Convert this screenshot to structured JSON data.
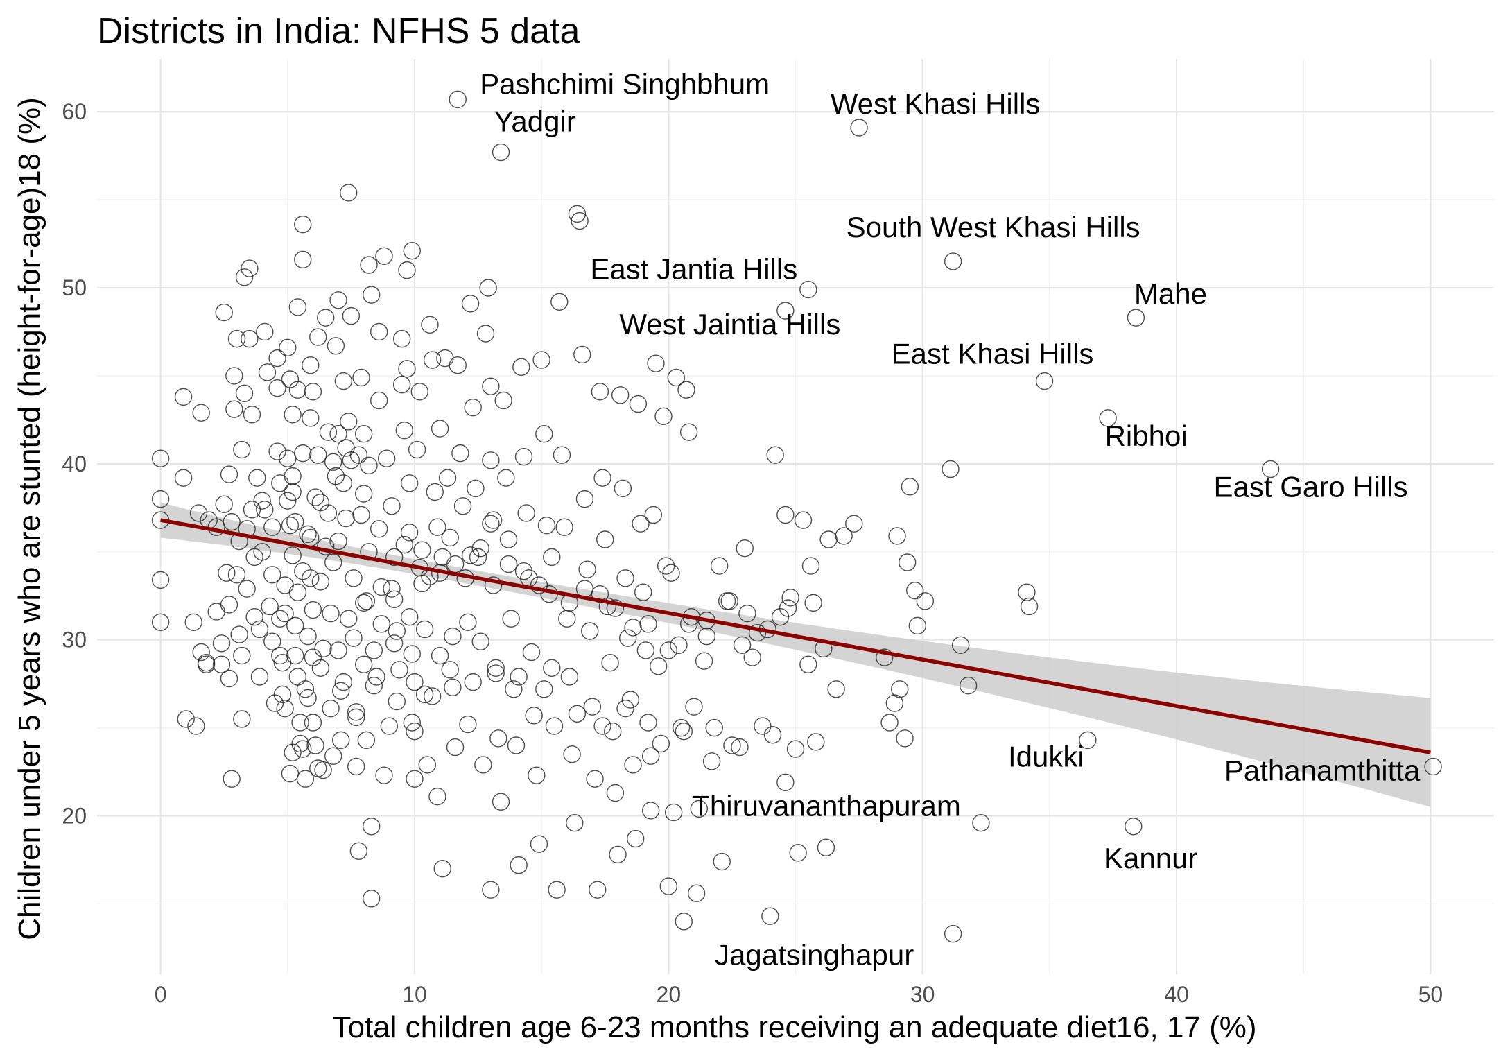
{
  "chart_data": {
    "type": "scatter",
    "title": "Districts in India: NFHS 5 data",
    "xlabel": "Total children age 6-23 months receiving an adequate diet16, 17  (%)",
    "ylabel": "Children under 5 years who are stunted (height-for-age)18 (%)",
    "xlim": [
      -2.5,
      52.5
    ],
    "ylim": [
      11,
      63
    ],
    "x_ticks": [
      0,
      10,
      20,
      30,
      40,
      50
    ],
    "y_ticks": [
      20,
      30,
      40,
      50,
      60
    ],
    "grid": true,
    "legend": "none",
    "colors": {
      "points": "#222222",
      "fit_line": "#8b0000",
      "ci_band": "#cccccc",
      "grid": "#ebebeb"
    },
    "fit": {
      "type": "linear",
      "x": [
        0,
        50
      ],
      "y": [
        36.8,
        23.6
      ],
      "ci_lower": [
        35.8,
        20.5
      ],
      "ci_upper": [
        37.8,
        26.7
      ]
    },
    "labeled_points": [
      {
        "name": "Pashchimi Singhbhum",
        "x": 11.7,
        "y": 60.7
      },
      {
        "name": "Yadgir",
        "x": 13.4,
        "y": 57.7
      },
      {
        "name": "West Khasi Hills",
        "x": 27.5,
        "y": 59.1
      },
      {
        "name": "South West Khasi Hills",
        "x": 31.2,
        "y": 51.5
      },
      {
        "name": "East Jantia Hills",
        "x": 25.5,
        "y": 49.9
      },
      {
        "name": "Mahe",
        "x": 38.4,
        "y": 48.3
      },
      {
        "name": "West Jaintia Hills",
        "x": 24.6,
        "y": 48.7
      },
      {
        "name": "East Khasi Hills",
        "x": 34.8,
        "y": 44.7
      },
      {
        "name": "Ribhoi",
        "x": 37.3,
        "y": 42.6
      },
      {
        "name": "East Garo Hills",
        "x": 43.7,
        "y": 39.7
      },
      {
        "name": "Idukki",
        "x": 36.5,
        "y": 24.3
      },
      {
        "name": "Pathanamthitta",
        "x": 50.1,
        "y": 22.8
      },
      {
        "name": "Thiruvananthapuram",
        "x": 21.2,
        "y": 20.4
      },
      {
        "name": "Kannur",
        "x": 38.3,
        "y": 19.4
      },
      {
        "name": "Jagatsinghapur",
        "x": 31.2,
        "y": 13.3
      }
    ],
    "points": [
      [
        0,
        40.3
      ],
      [
        0,
        38
      ],
      [
        0,
        36.8
      ],
      [
        0,
        33.4
      ],
      [
        0,
        31
      ],
      [
        0.9,
        43.8
      ],
      [
        0.9,
        39.2
      ],
      [
        1,
        25.5
      ],
      [
        1.3,
        31
      ],
      [
        1.4,
        25.1
      ],
      [
        1.5,
        37.2
      ],
      [
        1.6,
        29.3
      ],
      [
        1.6,
        42.9
      ],
      [
        1.8,
        28.7
      ],
      [
        1.9,
        36.8
      ],
      [
        2.2,
        36.4
      ],
      [
        2.4,
        29.8
      ],
      [
        2.4,
        28.6
      ],
      [
        2.5,
        48.6
      ],
      [
        2.5,
        37.7
      ],
      [
        2.6,
        33.8
      ],
      [
        2.7,
        32
      ],
      [
        2.7,
        27.8
      ],
      [
        2.7,
        39.4
      ],
      [
        2.8,
        22.1
      ],
      [
        2.8,
        36.7
      ],
      [
        2.9,
        45
      ],
      [
        2.9,
        43.1
      ],
      [
        3,
        47.1
      ],
      [
        3,
        33.7
      ],
      [
        3.1,
        30.3
      ],
      [
        3.1,
        35.6
      ],
      [
        3.2,
        25.5
      ],
      [
        3.2,
        29.1
      ],
      [
        3.2,
        40.8
      ],
      [
        3.3,
        44
      ],
      [
        3.3,
        50.6
      ],
      [
        3.4,
        32.9
      ],
      [
        3.4,
        36.3
      ],
      [
        3.5,
        51.1
      ],
      [
        3.5,
        47.1
      ],
      [
        3.6,
        42.8
      ],
      [
        3.7,
        31.3
      ],
      [
        3.7,
        34.7
      ],
      [
        3.8,
        39.2
      ],
      [
        3.9,
        30.6
      ],
      [
        4,
        35
      ],
      [
        4,
        37.9
      ],
      [
        4.1,
        37.4
      ],
      [
        4.1,
        47.5
      ],
      [
        4.2,
        45.2
      ],
      [
        4.3,
        31.9
      ],
      [
        4.4,
        33.7
      ],
      [
        4.4,
        36.4
      ],
      [
        4.5,
        26.4
      ],
      [
        4.6,
        46
      ],
      [
        4.6,
        44.3
      ],
      [
        4.6,
        40.7
      ],
      [
        4.7,
        38.9
      ],
      [
        4.7,
        31.2
      ],
      [
        4.7,
        29.1
      ],
      [
        4.8,
        28.7
      ],
      [
        4.8,
        26.9
      ],
      [
        4.9,
        33.1
      ],
      [
        4.9,
        31.5
      ],
      [
        5,
        46.6
      ],
      [
        5,
        40.3
      ],
      [
        5,
        37.9
      ],
      [
        5.1,
        36.5
      ],
      [
        5.1,
        44.8
      ],
      [
        5.1,
        22.4
      ],
      [
        5.2,
        23.6
      ],
      [
        5.2,
        42.8
      ],
      [
        5.2,
        38.4
      ],
      [
        5.2,
        39.3
      ],
      [
        5.3,
        30.8
      ],
      [
        5.3,
        29.1
      ],
      [
        5.3,
        36.7
      ],
      [
        5.4,
        48.9
      ],
      [
        5.4,
        44.2
      ],
      [
        5.4,
        32.7
      ],
      [
        5.4,
        27.9
      ],
      [
        5.5,
        25.3
      ],
      [
        5.5,
        24.1
      ],
      [
        5.6,
        53.6
      ],
      [
        5.6,
        51.6
      ],
      [
        5.6,
        40.6
      ],
      [
        5.6,
        33.9
      ],
      [
        5.7,
        22.1
      ],
      [
        5.7,
        27.2
      ],
      [
        5.8,
        36
      ],
      [
        5.8,
        30.2
      ],
      [
        5.8,
        26.7
      ],
      [
        5.9,
        45.6
      ],
      [
        5.9,
        42.6
      ],
      [
        5.9,
        35.8
      ],
      [
        6,
        44.1
      ],
      [
        6,
        31.7
      ],
      [
        6,
        29
      ],
      [
        6,
        25.3
      ],
      [
        6.1,
        24
      ],
      [
        6.1,
        38.1
      ],
      [
        6.2,
        40.5
      ],
      [
        6.2,
        47.2
      ],
      [
        6.3,
        33.3
      ],
      [
        6.3,
        28.4
      ],
      [
        6.4,
        22.6
      ],
      [
        6.4,
        29.5
      ],
      [
        6.5,
        48.3
      ],
      [
        6.5,
        35.3
      ],
      [
        6.6,
        41.8
      ],
      [
        6.6,
        37.2
      ],
      [
        6.7,
        31.5
      ],
      [
        6.7,
        26.1
      ],
      [
        6.8,
        23.4
      ],
      [
        6.8,
        34.4
      ],
      [
        6.9,
        46.7
      ],
      [
        6.9,
        39.3
      ],
      [
        7,
        49.3
      ],
      [
        7,
        41.7
      ],
      [
        7,
        35.6
      ],
      [
        7,
        29.4
      ],
      [
        7.1,
        24.3
      ],
      [
        7.2,
        27.6
      ],
      [
        7.2,
        44.7
      ],
      [
        7.2,
        38.9
      ],
      [
        7.3,
        36.9
      ],
      [
        7.4,
        31.2
      ],
      [
        7.4,
        42.4
      ],
      [
        7.4,
        55.4
      ],
      [
        7.5,
        48.4
      ],
      [
        7.5,
        40.2
      ],
      [
        7.6,
        33.5
      ],
      [
        7.6,
        30.1
      ],
      [
        7.7,
        25.9
      ],
      [
        7.7,
        22.8
      ],
      [
        7.8,
        18
      ],
      [
        7.9,
        37.1
      ],
      [
        7.9,
        44.9
      ],
      [
        8,
        38.3
      ],
      [
        8,
        41.7
      ],
      [
        8,
        32.1
      ],
      [
        8,
        28.6
      ],
      [
        8.1,
        24.3
      ],
      [
        8.2,
        51.3
      ],
      [
        8.2,
        39.9
      ],
      [
        8.2,
        35
      ],
      [
        8.3,
        49.6
      ],
      [
        8.3,
        15.3
      ],
      [
        8.3,
        19.4
      ],
      [
        8.4,
        29.4
      ],
      [
        8.5,
        27.9
      ],
      [
        8.6,
        47.5
      ],
      [
        8.6,
        43.6
      ],
      [
        8.7,
        33
      ],
      [
        8.7,
        30.9
      ],
      [
        8.8,
        51.8
      ],
      [
        8.8,
        22.3
      ],
      [
        8.9,
        40.3
      ],
      [
        9,
        25.1
      ],
      [
        9.1,
        37.6
      ],
      [
        9.2,
        34.7
      ],
      [
        9.2,
        32.3
      ],
      [
        9.3,
        30.5
      ],
      [
        9.3,
        26.5
      ],
      [
        9.4,
        28.3
      ],
      [
        9.5,
        47.1
      ],
      [
        9.5,
        44.5
      ],
      [
        9.6,
        41.9
      ],
      [
        9.7,
        51
      ],
      [
        9.7,
        45.4
      ],
      [
        9.8,
        38.9
      ],
      [
        9.8,
        36.1
      ],
      [
        9.8,
        31.3
      ],
      [
        9.9,
        52.1
      ],
      [
        9.9,
        29.2
      ],
      [
        10,
        27.6
      ],
      [
        10,
        24.8
      ],
      [
        10,
        22.1
      ],
      [
        10.1,
        40.8
      ],
      [
        10.2,
        44.1
      ],
      [
        10.3,
        35.1
      ],
      [
        10.3,
        33.2
      ],
      [
        10.4,
        30.6
      ],
      [
        10.4,
        26.9
      ],
      [
        10.5,
        22.9
      ],
      [
        10.6,
        47.9
      ],
      [
        10.7,
        45.9
      ],
      [
        10.8,
        38.4
      ],
      [
        10.9,
        36.4
      ],
      [
        10.9,
        21.1
      ],
      [
        11,
        42
      ],
      [
        11,
        33.8
      ],
      [
        11,
        29.1
      ],
      [
        11.1,
        17
      ],
      [
        11.2,
        46
      ],
      [
        11.3,
        39.2
      ],
      [
        11.4,
        35.8
      ],
      [
        11.5,
        30.2
      ],
      [
        11.5,
        27.3
      ],
      [
        11.6,
        23.9
      ],
      [
        11.7,
        45.6
      ],
      [
        11.8,
        40.6
      ],
      [
        11.9,
        37.6
      ],
      [
        12,
        33.5
      ],
      [
        12.1,
        31
      ],
      [
        12.1,
        25.2
      ],
      [
        12.2,
        49.1
      ],
      [
        12.3,
        43.2
      ],
      [
        12.4,
        38.6
      ],
      [
        12.5,
        34.7
      ],
      [
        12.6,
        29.9
      ],
      [
        12.7,
        22.9
      ],
      [
        12.8,
        47.4
      ],
      [
        12.9,
        50
      ],
      [
        13,
        44.4
      ],
      [
        13,
        40.2
      ],
      [
        13,
        36.6
      ],
      [
        13,
        15.8
      ],
      [
        13.1,
        33.1
      ],
      [
        13.2,
        28.4
      ],
      [
        13.3,
        24.4
      ],
      [
        13.4,
        20.8
      ],
      [
        13.5,
        43.6
      ],
      [
        13.6,
        39.2
      ],
      [
        13.7,
        35.7
      ],
      [
        13.8,
        31.2
      ],
      [
        13.9,
        27.2
      ],
      [
        14,
        24
      ],
      [
        14.1,
        17.2
      ],
      [
        14.2,
        45.5
      ],
      [
        14.3,
        40.4
      ],
      [
        14.4,
        37.2
      ],
      [
        14.5,
        33.5
      ],
      [
        14.6,
        29.3
      ],
      [
        14.7,
        25.7
      ],
      [
        14.8,
        22.3
      ],
      [
        14.9,
        18.4
      ],
      [
        15,
        45.9
      ],
      [
        15.1,
        41.7
      ],
      [
        15.2,
        36.5
      ],
      [
        15.3,
        32.6
      ],
      [
        15.4,
        28.4
      ],
      [
        15.5,
        25.1
      ],
      [
        15.6,
        15.8
      ],
      [
        15.7,
        49.2
      ],
      [
        15.8,
        40.5
      ],
      [
        15.9,
        36.4
      ],
      [
        16,
        31.2
      ],
      [
        16.1,
        27.9
      ],
      [
        16.2,
        23.5
      ],
      [
        16.3,
        19.6
      ],
      [
        16.4,
        54.2
      ],
      [
        16.5,
        53.8
      ],
      [
        16.6,
        46.2
      ],
      [
        16.7,
        38
      ],
      [
        16.8,
        34
      ],
      [
        16.9,
        30.5
      ],
      [
        17,
        26.2
      ],
      [
        17.1,
        22.1
      ],
      [
        17.2,
        15.8
      ],
      [
        17.3,
        44.1
      ],
      [
        17.4,
        39.2
      ],
      [
        17.5,
        35.7
      ],
      [
        17.6,
        31.9
      ],
      [
        17.7,
        28.7
      ],
      [
        17.8,
        24.8
      ],
      [
        17.9,
        21.3
      ],
      [
        18,
        17.8
      ],
      [
        18.1,
        43.9
      ],
      [
        18.2,
        38.6
      ],
      [
        18.3,
        33.5
      ],
      [
        18.4,
        30.1
      ],
      [
        18.5,
        26.6
      ],
      [
        18.6,
        22.9
      ],
      [
        18.7,
        18.7
      ],
      [
        18.8,
        43.4
      ],
      [
        18.9,
        36.6
      ],
      [
        19,
        32.7
      ],
      [
        19.1,
        29.4
      ],
      [
        19.2,
        25.3
      ],
      [
        19.3,
        20.3
      ],
      [
        19.4,
        37.1
      ],
      [
        19.5,
        45.7
      ],
      [
        19.6,
        28.5
      ],
      [
        19.7,
        24.1
      ],
      [
        19.8,
        42.7
      ],
      [
        19.9,
        34.2
      ],
      [
        20,
        16
      ],
      [
        20.1,
        33.8
      ],
      [
        20.2,
        20.2
      ],
      [
        20.3,
        44.9
      ],
      [
        20.4,
        29.7
      ],
      [
        20.5,
        25
      ],
      [
        20.6,
        14
      ],
      [
        20.7,
        44.2
      ],
      [
        20.8,
        41.8
      ],
      [
        20.9,
        31.3
      ],
      [
        21,
        26.2
      ],
      [
        21.1,
        15.6
      ],
      [
        21.4,
        28.8
      ],
      [
        21.5,
        31.1
      ],
      [
        21.8,
        25
      ],
      [
        22,
        34.2
      ],
      [
        22.1,
        17.4
      ],
      [
        22.3,
        32.2
      ],
      [
        22.5,
        24
      ],
      [
        22.9,
        29.7
      ],
      [
        23,
        35.2
      ],
      [
        23.3,
        29
      ],
      [
        23.5,
        30.4
      ],
      [
        23.7,
        25.1
      ],
      [
        24,
        14.3
      ],
      [
        24.2,
        40.5
      ],
      [
        24.4,
        31.3
      ],
      [
        24.6,
        37.1
      ],
      [
        24.6,
        21.9
      ],
      [
        24.8,
        32.4
      ],
      [
        25,
        23.8
      ],
      [
        25.1,
        17.9
      ],
      [
        25.3,
        36.8
      ],
      [
        25.5,
        28.6
      ],
      [
        25.6,
        34.2
      ],
      [
        25.8,
        24.2
      ],
      [
        26.1,
        29.5
      ],
      [
        26.2,
        18.2
      ],
      [
        26.3,
        35.7
      ],
      [
        26.6,
        27.2
      ],
      [
        26.9,
        35.9
      ],
      [
        27.3,
        36.6
      ],
      [
        28.5,
        29
      ],
      [
        28.7,
        25.3
      ],
      [
        28.9,
        26.4
      ],
      [
        29,
        35.9
      ],
      [
        29.1,
        27.2
      ],
      [
        29.3,
        24.4
      ],
      [
        29.4,
        34.4
      ],
      [
        29.5,
        38.7
      ],
      [
        29.7,
        32.8
      ],
      [
        29.8,
        30.8
      ],
      [
        30.1,
        32.2
      ],
      [
        31.1,
        39.7
      ],
      [
        31.5,
        29.7
      ],
      [
        31.8,
        27.4
      ],
      [
        32.3,
        19.6
      ],
      [
        34.1,
        32.7
      ],
      [
        34.2,
        31.9
      ],
      [
        1.8,
        28.6
      ],
      [
        2.2,
        31.6
      ],
      [
        3.6,
        37.4
      ],
      [
        4.4,
        29.9
      ],
      [
        5.2,
        34.8
      ],
      [
        5.9,
        33.5
      ],
      [
        6.3,
        37.8
      ],
      [
        6.8,
        40.1
      ],
      [
        7.3,
        40.9
      ],
      [
        7.8,
        40.5
      ],
      [
        8.1,
        32.2
      ],
      [
        8.6,
        36.3
      ],
      [
        9.1,
        32.9
      ],
      [
        9.6,
        35.4
      ],
      [
        10.2,
        34.1
      ],
      [
        10.6,
        33.6
      ],
      [
        11.1,
        34.7
      ],
      [
        11.6,
        34.3
      ],
      [
        12.2,
        34.8
      ],
      [
        12.6,
        35.2
      ],
      [
        13.1,
        36.8
      ],
      [
        13.7,
        34.3
      ],
      [
        14.3,
        33.9
      ],
      [
        14.9,
        33.1
      ],
      [
        15.4,
        34.7
      ],
      [
        16.1,
        32.1
      ],
      [
        16.7,
        32.9
      ],
      [
        17.3,
        32.6
      ],
      [
        17.9,
        31.8
      ],
      [
        18.6,
        30.7
      ],
      [
        19.2,
        30.9
      ],
      [
        20,
        29.4
      ],
      [
        20.8,
        30.9
      ],
      [
        21.5,
        30.2
      ],
      [
        22.4,
        32.2
      ],
      [
        23.1,
        31.5
      ],
      [
        23.9,
        30.6
      ],
      [
        24.7,
        31.8
      ],
      [
        25.7,
        32.1
      ],
      [
        3.9,
        27.9
      ],
      [
        4.9,
        26.1
      ],
      [
        5.6,
        23.8
      ],
      [
        6.2,
        22.7
      ],
      [
        7.1,
        27.1
      ],
      [
        7.7,
        25.6
      ],
      [
        8.4,
        27.4
      ],
      [
        9.2,
        29.8
      ],
      [
        9.9,
        25.3
      ],
      [
        10.7,
        26.8
      ],
      [
        11.4,
        28.3
      ],
      [
        12.3,
        27.6
      ],
      [
        13.2,
        28.1
      ],
      [
        14.1,
        27.9
      ],
      [
        15.1,
        27.2
      ],
      [
        16.4,
        25.8
      ],
      [
        17.4,
        25.1
      ],
      [
        18.3,
        26.1
      ],
      [
        19.3,
        23.4
      ],
      [
        20.6,
        24.8
      ],
      [
        21.7,
        23.1
      ],
      [
        22.8,
        23.9
      ],
      [
        24.1,
        24.6
      ]
    ]
  }
}
